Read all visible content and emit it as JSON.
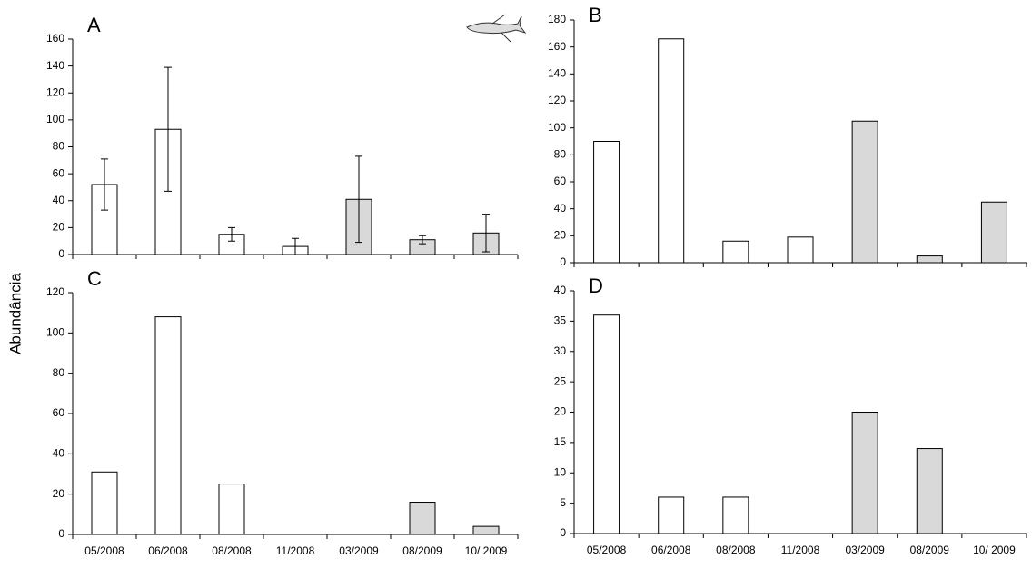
{
  "ylabel": "Abundância",
  "chart_data": [
    {
      "type": "bar",
      "title": "A",
      "categories": [
        null,
        null,
        null,
        null,
        null,
        null,
        null
      ],
      "values": [
        52,
        93,
        15,
        6,
        41,
        11,
        16
      ],
      "errors": [
        19,
        46,
        5,
        6,
        32,
        3,
        14
      ],
      "colors": [
        "#ffffff",
        "#ffffff",
        "#ffffff",
        "#ffffff",
        "#d9d9d9",
        "#d9d9d9",
        "#d9d9d9"
      ],
      "ylim": [
        0,
        160
      ],
      "yticks": [
        0,
        20,
        40,
        60,
        80,
        100,
        120,
        140,
        160
      ]
    },
    {
      "type": "bar",
      "title": "B",
      "categories": [
        null,
        null,
        null,
        null,
        null,
        null,
        null
      ],
      "values": [
        90,
        166,
        16,
        19,
        105,
        5,
        45
      ],
      "colors": [
        "#ffffff",
        "#ffffff",
        "#ffffff",
        "#ffffff",
        "#d9d9d9",
        "#d9d9d9",
        "#d9d9d9"
      ],
      "ylim": [
        0,
        180
      ],
      "yticks": [
        0,
        20,
        40,
        60,
        80,
        100,
        120,
        140,
        160,
        180
      ]
    },
    {
      "type": "bar",
      "title": "C",
      "categories": [
        "05/2008",
        "06/2008",
        "08/2008",
        "11/2008",
        "03/2009",
        "08/2009",
        "10/ 2009"
      ],
      "values": [
        31,
        108,
        25,
        0,
        0,
        16,
        4
      ],
      "colors": [
        "#ffffff",
        "#ffffff",
        "#ffffff",
        "#ffffff",
        "#d9d9d9",
        "#d9d9d9",
        "#d9d9d9"
      ],
      "ylim": [
        0,
        120
      ],
      "yticks": [
        0,
        20,
        40,
        60,
        80,
        100,
        120
      ]
    },
    {
      "type": "bar",
      "title": "D",
      "categories": [
        "05/2008",
        "06/2008",
        "08/2008",
        "11/2008",
        "03/2009",
        "08/2009",
        "10/ 2009"
      ],
      "values": [
        36,
        6,
        6,
        0,
        20,
        14,
        0
      ],
      "colors": [
        "#ffffff",
        "#ffffff",
        "#ffffff",
        "#ffffff",
        "#d9d9d9",
        "#d9d9d9",
        "#d9d9d9"
      ],
      "ylim": [
        0,
        40
      ],
      "yticks": [
        0,
        5,
        10,
        15,
        20,
        25,
        30,
        35,
        40
      ]
    }
  ]
}
